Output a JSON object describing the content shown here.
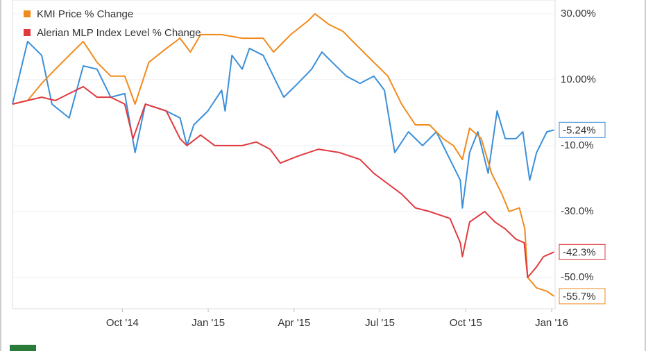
{
  "chart_data": {
    "type": "line",
    "xlim": [
      2014.43,
      2016.01
    ],
    "xticks": [
      {
        "value": 2014.75,
        "label": "Oct '14"
      },
      {
        "value": 2015.0,
        "label": "Jan '15"
      },
      {
        "value": 2015.25,
        "label": "Apr '15"
      },
      {
        "value": 2015.5,
        "label": "Jul '15"
      },
      {
        "value": 2015.75,
        "label": "Oct '15"
      },
      {
        "value": 2016.0,
        "label": "Jan '16"
      }
    ],
    "ylim": [
      -59.5,
      34.2
    ],
    "yticks": [
      {
        "value": 30,
        "label": "30.00%"
      },
      {
        "value": 10,
        "label": "10.00%"
      },
      {
        "value": -10,
        "label": "-10.0%"
      },
      {
        "value": -30,
        "label": "-30.0%"
      },
      {
        "value": -50,
        "label": "-50.0%"
      }
    ],
    "grid": true,
    "series": [
      {
        "color": "#3a8fd9",
        "x": [
          2014.43,
          2014.474,
          2014.515,
          2014.545,
          2014.595,
          2014.636,
          2014.676,
          2014.716,
          2014.757,
          2014.787,
          2014.817,
          2014.878,
          2014.918,
          2014.938,
          2014.958,
          2014.999,
          2015.039,
          2015.049,
          2015.069,
          2015.099,
          2015.12,
          2015.16,
          2015.2,
          2015.22,
          2015.261,
          2015.301,
          2015.331,
          2015.361,
          2015.402,
          2015.442,
          2015.482,
          2015.513,
          2015.543,
          2015.583,
          2015.624,
          2015.664,
          2015.704,
          2015.734,
          2015.74,
          2015.761,
          2015.785,
          2015.815,
          2015.841,
          2015.865,
          2015.896,
          2015.916,
          2015.936,
          2015.956,
          2015.986,
          2016.007
        ],
        "values": [
          2.6,
          21.6,
          17.4,
          2.6,
          -1.6,
          14.2,
          13.2,
          4.7,
          5.8,
          -12.1,
          2.6,
          0.5,
          -1.6,
          -10,
          -3.7,
          0.5,
          6.8,
          0.5,
          17.4,
          13.2,
          19.5,
          17.4,
          8.9,
          4.7,
          8.9,
          13.2,
          18.4,
          15.3,
          11.1,
          8.9,
          11.1,
          6.8,
          -12.1,
          -5.8,
          -10,
          -5.8,
          -14.2,
          -20.5,
          -28.9,
          -12.1,
          -5.8,
          -18.4,
          0.5,
          -7.9,
          -7.9,
          -5.8,
          -20.5,
          -12.1,
          -5.8,
          -5.24
        ],
        "value_labels": [
          null,
          null,
          null,
          null,
          null,
          null,
          null,
          null,
          null,
          null,
          null,
          null,
          null,
          null,
          null,
          null,
          null,
          null,
          null,
          null,
          null,
          null,
          null,
          null,
          null,
          null,
          null,
          null,
          null,
          null,
          null,
          null,
          null,
          null,
          null,
          null,
          null,
          null,
          null,
          null,
          null,
          null,
          null,
          null,
          null,
          null,
          null,
          null,
          null,
          "-5.24%"
        ]
      },
      {
        "name": "KMI Price % Change",
        "color": "#f28a1b",
        "x": [
          2014.43,
          2014.474,
          2014.515,
          2014.555,
          2014.595,
          2014.636,
          2014.676,
          2014.716,
          2014.757,
          2014.787,
          2014.827,
          2014.878,
          2014.918,
          2014.948,
          2014.978,
          2015.039,
          2015.099,
          2015.16,
          2015.19,
          2015.24,
          2015.291,
          2015.311,
          2015.351,
          2015.392,
          2015.432,
          2015.482,
          2015.523,
          2015.563,
          2015.603,
          2015.644,
          2015.684,
          2015.714,
          2015.74,
          2015.761,
          2015.795,
          2015.825,
          2015.855,
          2015.876,
          2015.906,
          2015.922,
          2015.93,
          2015.956,
          2015.986,
          2016.007
        ],
        "values": [
          2.6,
          3.7,
          8.9,
          13.2,
          17.4,
          21.6,
          15.3,
          11.1,
          11.1,
          2.6,
          15.3,
          19.5,
          22.6,
          18.4,
          23.7,
          23.7,
          22.6,
          22.6,
          18.4,
          23.7,
          27.9,
          30,
          26.8,
          24.7,
          20.5,
          15.3,
          11.1,
          2.6,
          -3.7,
          -3.7,
          -7.9,
          -10,
          -14.2,
          -4.7,
          -7.9,
          -18.4,
          -24.7,
          -30,
          -28.9,
          -35.3,
          -50,
          -53.2,
          -54.2,
          -55.7
        ],
        "value_labels": [
          null,
          null,
          null,
          null,
          null,
          null,
          null,
          null,
          null,
          null,
          null,
          null,
          null,
          null,
          null,
          null,
          null,
          null,
          null,
          null,
          null,
          null,
          null,
          null,
          null,
          null,
          null,
          null,
          null,
          null,
          null,
          null,
          null,
          null,
          null,
          null,
          null,
          null,
          null,
          null,
          null,
          null,
          null,
          "-55.7%"
        ]
      },
      {
        "name": "Alerian MLP Index Level % Change",
        "color": "#e0393e",
        "x": [
          2014.43,
          2014.474,
          2014.515,
          2014.555,
          2014.595,
          2014.636,
          2014.676,
          2014.716,
          2014.757,
          2014.781,
          2014.817,
          2014.878,
          2014.918,
          2014.938,
          2014.978,
          2015.019,
          2015.059,
          2015.099,
          2015.14,
          2015.18,
          2015.21,
          2015.261,
          2015.321,
          2015.382,
          2015.442,
          2015.482,
          2015.523,
          2015.563,
          2015.603,
          2015.644,
          2015.704,
          2015.734,
          2015.74,
          2015.761,
          2015.805,
          2015.835,
          2015.865,
          2015.896,
          2015.92,
          2015.93,
          2015.956,
          2015.976,
          2016.007
        ],
        "values": [
          2.6,
          3.7,
          4.7,
          3.7,
          5.8,
          7.9,
          4.7,
          4.7,
          2.6,
          -7.9,
          2.6,
          0.5,
          -7.9,
          -10,
          -6.8,
          -10,
          -10,
          -10,
          -8.9,
          -11.1,
          -15.3,
          -13.2,
          -11.1,
          -12.1,
          -14.2,
          -18.4,
          -21.6,
          -24.7,
          -28.9,
          -30,
          -32.1,
          -39.5,
          -43.7,
          -33.2,
          -30,
          -33.2,
          -35.3,
          -38.4,
          -39.5,
          -50,
          -46.8,
          -43.7,
          -42.3
        ],
        "value_labels": [
          null,
          null,
          null,
          null,
          null,
          null,
          null,
          null,
          null,
          null,
          null,
          null,
          null,
          null,
          null,
          null,
          null,
          null,
          null,
          null,
          null,
          null,
          null,
          null,
          null,
          null,
          null,
          null,
          null,
          null,
          null,
          null,
          null,
          null,
          null,
          null,
          null,
          null,
          null,
          null,
          null,
          null,
          "-42.3%"
        ]
      }
    ]
  }
}
